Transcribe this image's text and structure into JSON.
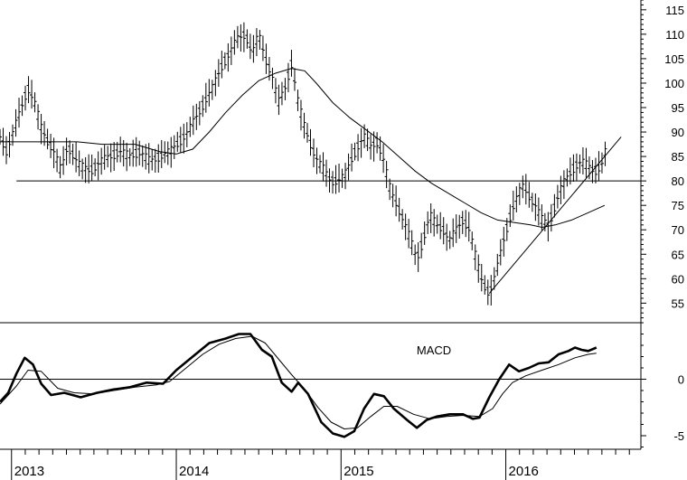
{
  "chart_data": [
    {
      "type": "bar",
      "style": "ohlc",
      "title": "",
      "price_axis_ticks": [
        55,
        60,
        65,
        70,
        75,
        80,
        85,
        90,
        95,
        100,
        105,
        110,
        115
      ],
      "ylim": [
        51,
        117
      ],
      "time_axis_labels": [
        "2013",
        "2014",
        "2015",
        "2016"
      ],
      "xlim": [
        2012.93,
        2016.82
      ],
      "horizontal_line": 80,
      "price_path": [
        [
          2012.93,
          89
        ],
        [
          2012.97,
          86
        ],
        [
          2013.02,
          91
        ],
        [
          2013.06,
          95
        ],
        [
          2013.1,
          99
        ],
        [
          2013.14,
          96
        ],
        [
          2013.18,
          91
        ],
        [
          2013.22,
          88
        ],
        [
          2013.26,
          86
        ],
        [
          2013.3,
          82
        ],
        [
          2013.34,
          87
        ],
        [
          2013.38,
          85
        ],
        [
          2013.42,
          83
        ],
        [
          2013.48,
          82
        ],
        [
          2013.54,
          84
        ],
        [
          2013.6,
          85
        ],
        [
          2013.66,
          86
        ],
        [
          2013.72,
          85
        ],
        [
          2013.78,
          86
        ],
        [
          2013.84,
          84
        ],
        [
          2013.9,
          85
        ],
        [
          2013.96,
          86
        ],
        [
          2014.02,
          88
        ],
        [
          2014.07,
          90
        ],
        [
          2014.12,
          93
        ],
        [
          2014.17,
          96
        ],
        [
          2014.22,
          99
        ],
        [
          2014.27,
          103
        ],
        [
          2014.32,
          106
        ],
        [
          2014.37,
          109
        ],
        [
          2014.42,
          110
        ],
        [
          2014.46,
          106
        ],
        [
          2014.5,
          110
        ],
        [
          2014.55,
          104
        ],
        [
          2014.58,
          102
        ],
        [
          2014.62,
          96
        ],
        [
          2014.66,
          99
        ],
        [
          2014.7,
          104
        ],
        [
          2014.74,
          96
        ],
        [
          2014.78,
          91
        ],
        [
          2014.82,
          87
        ],
        [
          2014.86,
          84
        ],
        [
          2014.9,
          82
        ],
        [
          2014.94,
          80
        ],
        [
          2014.98,
          80
        ],
        [
          2015.02,
          81
        ],
        [
          2015.06,
          84
        ],
        [
          2015.1,
          87
        ],
        [
          2015.14,
          89
        ],
        [
          2015.18,
          87
        ],
        [
          2015.22,
          88
        ],
        [
          2015.26,
          84
        ],
        [
          2015.3,
          78
        ],
        [
          2015.34,
          75
        ],
        [
          2015.38,
          72
        ],
        [
          2015.42,
          68
        ],
        [
          2015.46,
          64
        ],
        [
          2015.5,
          68
        ],
        [
          2015.54,
          73
        ],
        [
          2015.58,
          71
        ],
        [
          2015.62,
          70
        ],
        [
          2015.66,
          68
        ],
        [
          2015.7,
          70
        ],
        [
          2015.74,
          72
        ],
        [
          2015.78,
          70
        ],
        [
          2015.82,
          64
        ],
        [
          2015.86,
          59
        ],
        [
          2015.9,
          57
        ],
        [
          2015.94,
          61
        ],
        [
          2015.98,
          67
        ],
        [
          2016.02,
          72
        ],
        [
          2016.06,
          76
        ],
        [
          2016.1,
          79
        ],
        [
          2016.14,
          77
        ],
        [
          2016.18,
          75
        ],
        [
          2016.22,
          72
        ],
        [
          2016.26,
          71
        ],
        [
          2016.3,
          75
        ],
        [
          2016.34,
          79
        ],
        [
          2016.38,
          81
        ],
        [
          2016.42,
          83
        ],
        [
          2016.46,
          84
        ],
        [
          2016.5,
          83
        ],
        [
          2016.54,
          82
        ],
        [
          2016.58,
          83
        ],
        [
          2016.62,
          88
        ]
      ],
      "moving_average": [
        [
          2012.93,
          88
        ],
        [
          2013.05,
          88
        ],
        [
          2013.2,
          88
        ],
        [
          2013.4,
          88
        ],
        [
          2013.55,
          87.5
        ],
        [
          2013.75,
          87.5
        ],
        [
          2013.9,
          86
        ],
        [
          2014.0,
          85.5
        ],
        [
          2014.1,
          86.5
        ],
        [
          2014.2,
          90
        ],
        [
          2014.3,
          94
        ],
        [
          2014.4,
          97.5
        ],
        [
          2014.5,
          100.5
        ],
        [
          2014.6,
          102
        ],
        [
          2014.7,
          103
        ],
        [
          2014.78,
          102.5
        ],
        [
          2014.85,
          100
        ],
        [
          2014.95,
          96
        ],
        [
          2015.05,
          93
        ],
        [
          2015.15,
          90.5
        ],
        [
          2015.25,
          88
        ],
        [
          2015.35,
          85
        ],
        [
          2015.45,
          82
        ],
        [
          2015.55,
          79.5
        ],
        [
          2015.65,
          77.5
        ],
        [
          2015.75,
          75.5
        ],
        [
          2015.85,
          73.5
        ],
        [
          2015.95,
          72
        ],
        [
          2016.05,
          71.5
        ],
        [
          2016.15,
          71
        ],
        [
          2016.22,
          70.5
        ],
        [
          2016.3,
          71
        ],
        [
          2016.4,
          72
        ],
        [
          2016.5,
          73.5
        ],
        [
          2016.6,
          75
        ]
      ],
      "trendline": [
        [
          2015.9,
          57
        ],
        [
          2016.7,
          89
        ]
      ]
    },
    {
      "type": "line",
      "title": "MACD",
      "y_axis_ticks": [
        -5,
        0
      ],
      "ylim": [
        -6.2,
        5
      ],
      "xlim": [
        2012.93,
        2016.82
      ],
      "time_axis_labels": [
        "2013",
        "2014",
        "2015",
        "2016"
      ],
      "zero_line": 0,
      "series": [
        {
          "role": "macd",
          "values": [
            [
              2012.93,
              -2.0
            ],
            [
              2012.98,
              -1.2
            ],
            [
              2013.03,
              0.5
            ],
            [
              2013.08,
              1.9
            ],
            [
              2013.13,
              1.3
            ],
            [
              2013.18,
              -0.4
            ],
            [
              2013.24,
              -1.4
            ],
            [
              2013.32,
              -1.2
            ],
            [
              2013.42,
              -1.6
            ],
            [
              2013.52,
              -1.2
            ],
            [
              2013.62,
              -0.9
            ],
            [
              2013.72,
              -0.7
            ],
            [
              2013.82,
              -0.3
            ],
            [
              2013.92,
              -0.4
            ],
            [
              2014.0,
              0.8
            ],
            [
              2014.1,
              2.0
            ],
            [
              2014.2,
              3.2
            ],
            [
              2014.3,
              3.6
            ],
            [
              2014.38,
              4.0
            ],
            [
              2014.45,
              4.0
            ],
            [
              2014.52,
              2.6
            ],
            [
              2014.58,
              2.0
            ],
            [
              2014.64,
              -0.3
            ],
            [
              2014.7,
              -1.1
            ],
            [
              2014.74,
              -0.3
            ],
            [
              2014.8,
              -1.3
            ],
            [
              2014.88,
              -3.8
            ],
            [
              2014.95,
              -4.8
            ],
            [
              2015.02,
              -5.1
            ],
            [
              2015.08,
              -4.6
            ],
            [
              2015.14,
              -2.6
            ],
            [
              2015.2,
              -1.3
            ],
            [
              2015.26,
              -1.5
            ],
            [
              2015.32,
              -2.6
            ],
            [
              2015.4,
              -3.6
            ],
            [
              2015.46,
              -4.3
            ],
            [
              2015.52,
              -3.6
            ],
            [
              2015.58,
              -3.3
            ],
            [
              2015.66,
              -3.1
            ],
            [
              2015.74,
              -3.1
            ],
            [
              2015.8,
              -3.5
            ],
            [
              2015.84,
              -3.4
            ],
            [
              2015.9,
              -1.6
            ],
            [
              2015.96,
              0.0
            ],
            [
              2016.02,
              1.3
            ],
            [
              2016.08,
              0.7
            ],
            [
              2016.14,
              1.0
            ],
            [
              2016.2,
              1.4
            ],
            [
              2016.26,
              1.5
            ],
            [
              2016.32,
              2.2
            ],
            [
              2016.38,
              2.5
            ],
            [
              2016.42,
              2.8
            ],
            [
              2016.46,
              2.6
            ],
            [
              2016.5,
              2.5
            ],
            [
              2016.55,
              2.8
            ]
          ]
        },
        {
          "role": "signal",
          "values": [
            [
              2012.93,
              -2.2
            ],
            [
              2013.03,
              -0.6
            ],
            [
              2013.1,
              0.8
            ],
            [
              2013.18,
              0.7
            ],
            [
              2013.28,
              -0.8
            ],
            [
              2013.38,
              -1.2
            ],
            [
              2013.5,
              -1.3
            ],
            [
              2013.62,
              -1.0
            ],
            [
              2013.75,
              -0.7
            ],
            [
              2013.88,
              -0.5
            ],
            [
              2013.96,
              -0.2
            ],
            [
              2014.06,
              1.0
            ],
            [
              2014.16,
              2.2
            ],
            [
              2014.26,
              3.1
            ],
            [
              2014.36,
              3.6
            ],
            [
              2014.46,
              3.8
            ],
            [
              2014.54,
              3.2
            ],
            [
              2014.62,
              1.8
            ],
            [
              2014.7,
              0.4
            ],
            [
              2014.78,
              -0.9
            ],
            [
              2014.86,
              -2.5
            ],
            [
              2014.94,
              -3.8
            ],
            [
              2015.02,
              -4.4
            ],
            [
              2015.1,
              -4.3
            ],
            [
              2015.18,
              -3.3
            ],
            [
              2015.26,
              -2.4
            ],
            [
              2015.34,
              -2.4
            ],
            [
              2015.44,
              -3.1
            ],
            [
              2015.54,
              -3.5
            ],
            [
              2015.64,
              -3.3
            ],
            [
              2015.74,
              -3.2
            ],
            [
              2015.84,
              -3.3
            ],
            [
              2015.92,
              -2.6
            ],
            [
              2015.98,
              -1.3
            ],
            [
              2016.04,
              -0.3
            ],
            [
              2016.12,
              0.3
            ],
            [
              2016.22,
              0.8
            ],
            [
              2016.32,
              1.3
            ],
            [
              2016.42,
              1.9
            ],
            [
              2016.5,
              2.2
            ],
            [
              2016.55,
              2.3
            ]
          ]
        }
      ]
    }
  ]
}
